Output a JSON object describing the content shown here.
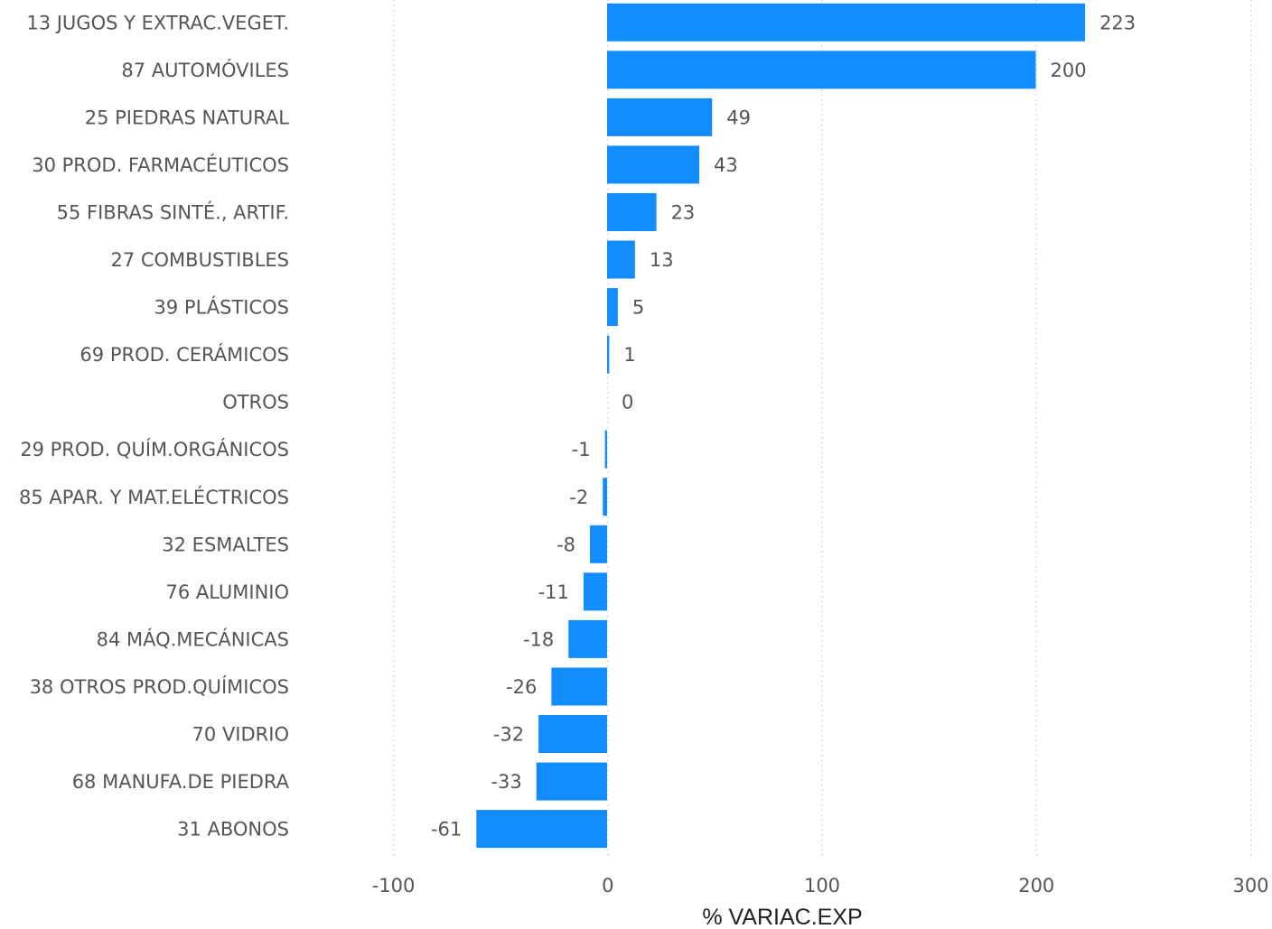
{
  "chart_data": {
    "type": "bar",
    "orientation": "horizontal",
    "categories": [
      "13 JUGOS Y EXTRAC.VEGET.",
      "87 AUTOMÓVILES",
      "25 PIEDRAS NATURAL",
      "30 PROD. FARMACÉUTICOS",
      "55 FIBRAS SINTÉ., ARTIF.",
      "27 COMBUSTIBLES",
      "39 PLÁSTICOS",
      "69 PROD. CERÁMICOS",
      "OTROS",
      "29 PROD. QUÍM.ORGÁNICOS",
      "85 APAR. Y MAT.ELÉCTRICOS",
      "32 ESMALTES",
      "76 ALUMINIO",
      "84 MÁQ.MECÁNICAS",
      "38 OTROS PROD.QUÍMICOS",
      "70 VIDRIO",
      "68 MANUFA.DE PIEDRA",
      "31 ABONOS"
    ],
    "values": [
      223,
      200,
      49,
      43,
      23,
      13,
      5,
      1,
      0,
      -1,
      -2,
      -8,
      -11,
      -18,
      -26,
      -32,
      -33,
      -61
    ],
    "data_labels": [
      "223",
      "200",
      "49",
      "43",
      "23",
      "13",
      "5",
      "1",
      "0",
      "-1",
      "-2",
      "-8",
      "-11",
      "-18",
      "-26",
      "-32",
      "-33",
      "-61"
    ],
    "xlabel": "% VARIAC.EXP",
    "ylabel": "",
    "xlim": [
      -100,
      300
    ],
    "xticks": [
      -100,
      0,
      100,
      200,
      300
    ],
    "xtick_labels": [
      "-100",
      "0",
      "100",
      "200",
      "300"
    ],
    "grid": "vertical-dotted",
    "legend": "none",
    "bar_color": "#118DFF",
    "label_color": "#555555",
    "title_color": "#222222"
  }
}
